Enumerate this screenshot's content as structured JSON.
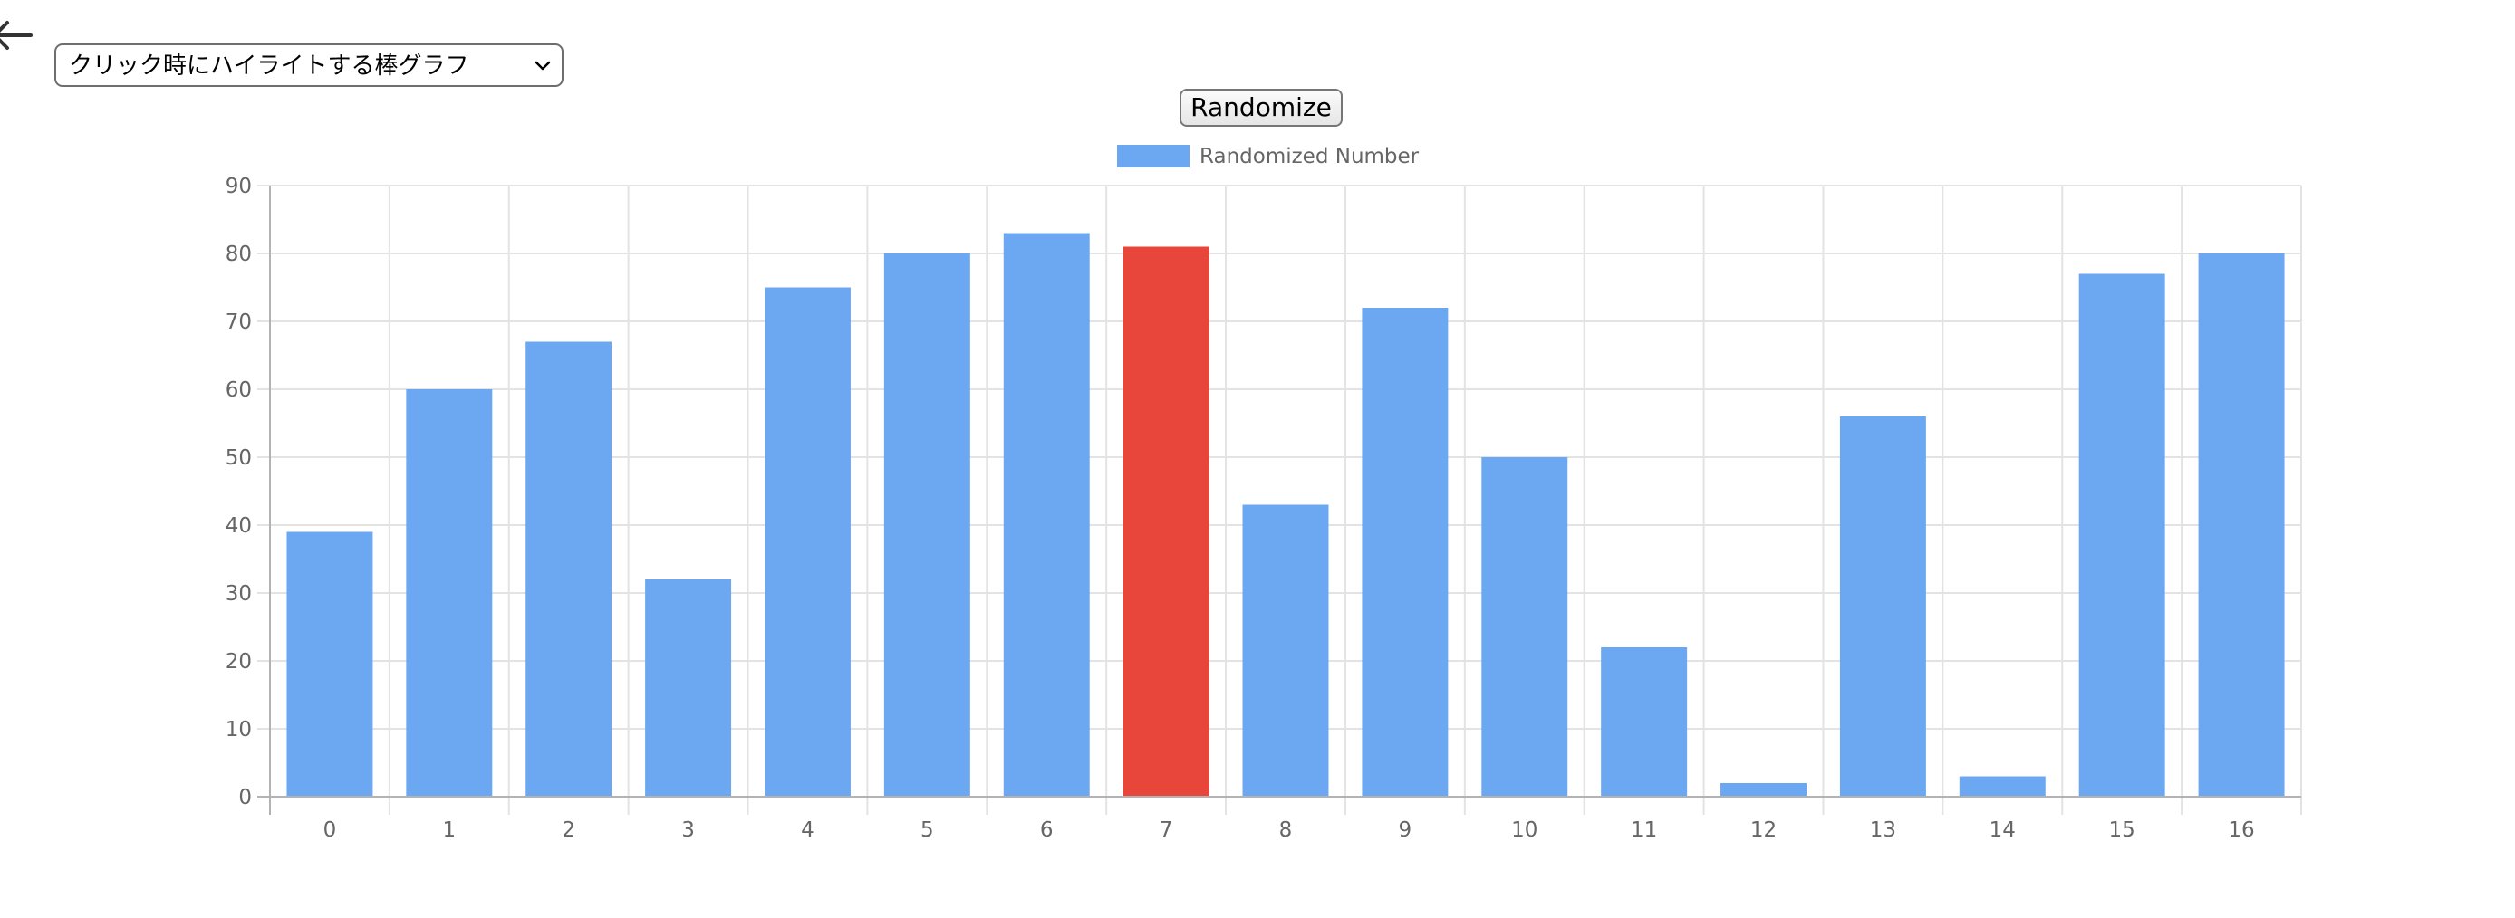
{
  "controls": {
    "back_icon": "arrow-left-icon",
    "chart_select": {
      "selected": "クリック時にハイライトする棒グラフ"
    },
    "randomize_label": "Randomize"
  },
  "colors": {
    "bar": "#6ca8f2",
    "highlight": "#e8463b",
    "grid": "#e3e3e3",
    "axis": "#b3b3b3",
    "tick_text": "#666666"
  },
  "chart_data": {
    "type": "bar",
    "title": "",
    "xlabel": "",
    "ylabel": "",
    "categories": [
      "0",
      "1",
      "2",
      "3",
      "4",
      "5",
      "6",
      "7",
      "8",
      "9",
      "10",
      "11",
      "12",
      "13",
      "14",
      "15",
      "16"
    ],
    "series": [
      {
        "name": "Randomized Number",
        "values": [
          39,
          60,
          67,
          32,
          75,
          80,
          83,
          81,
          43,
          72,
          50,
          22,
          2,
          56,
          3,
          77,
          80
        ]
      }
    ],
    "highlighted_index": 7,
    "ylim": [
      0,
      90
    ],
    "yticks": [
      0,
      10,
      20,
      30,
      40,
      50,
      60,
      70,
      80,
      90
    ],
    "grid": true,
    "legend": "top-center"
  }
}
